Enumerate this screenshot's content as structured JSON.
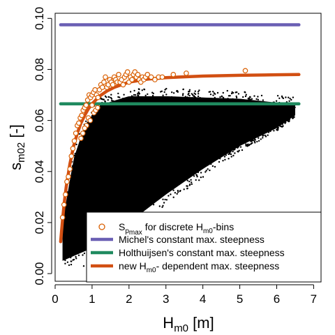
{
  "chart_data": {
    "type": "scatter",
    "title": "",
    "xlabel": {
      "main": "H",
      "sub": "m0",
      "suffix": " [m]"
    },
    "ylabel": {
      "main": "s",
      "sub": "m02",
      "suffix": " [-]"
    },
    "xlim": [
      0,
      7.2
    ],
    "ylim": [
      -0.003,
      0.102
    ],
    "x_ticks": [
      "0",
      "1",
      "2",
      "3",
      "4",
      "5",
      "6",
      "7"
    ],
    "y_ticks": [
      "0.00",
      "0.02",
      "0.04",
      "0.06",
      "0.08",
      "0.10"
    ],
    "grid": false,
    "legend_position": "bottom-right",
    "series": [
      {
        "name": "S_pmax for discrete H_m0-bins",
        "kind": "points",
        "color": "#d95f02",
        "values": [
          [
            0.2,
            0.022
          ],
          [
            0.24,
            0.027
          ],
          [
            0.28,
            0.031
          ],
          [
            0.32,
            0.036
          ],
          [
            0.36,
            0.038
          ],
          [
            0.4,
            0.041
          ],
          [
            0.44,
            0.046
          ],
          [
            0.48,
            0.049
          ],
          [
            0.52,
            0.052
          ],
          [
            0.56,
            0.055
          ],
          [
            0.6,
            0.058
          ],
          [
            0.64,
            0.059
          ],
          [
            0.68,
            0.061
          ],
          [
            0.72,
            0.062
          ],
          [
            0.76,
            0.064
          ],
          [
            0.8,
            0.065
          ],
          [
            0.84,
            0.066
          ],
          [
            0.88,
            0.068
          ],
          [
            0.92,
            0.07
          ],
          [
            0.96,
            0.069
          ],
          [
            1.0,
            0.07
          ],
          [
            1.04,
            0.071
          ],
          [
            1.08,
            0.072
          ],
          [
            1.12,
            0.07
          ],
          [
            1.16,
            0.069
          ],
          [
            1.2,
            0.072
          ],
          [
            1.24,
            0.074
          ],
          [
            1.28,
            0.073
          ],
          [
            1.32,
            0.075
          ],
          [
            1.36,
            0.077
          ],
          [
            1.4,
            0.073
          ],
          [
            1.44,
            0.074
          ],
          [
            1.48,
            0.076
          ],
          [
            1.52,
            0.075
          ],
          [
            1.56,
            0.074
          ],
          [
            1.6,
            0.077
          ],
          [
            1.64,
            0.076
          ],
          [
            1.68,
            0.075
          ],
          [
            1.72,
            0.078
          ],
          [
            1.76,
            0.075
          ],
          [
            1.8,
            0.076
          ],
          [
            1.84,
            0.074
          ],
          [
            1.88,
            0.077
          ],
          [
            1.92,
            0.078
          ],
          [
            1.96,
            0.079
          ],
          [
            2.0,
            0.075
          ],
          [
            2.04,
            0.077
          ],
          [
            2.08,
            0.076
          ],
          [
            2.12,
            0.078
          ],
          [
            2.16,
            0.079
          ],
          [
            2.2,
            0.077
          ],
          [
            2.24,
            0.078
          ],
          [
            2.28,
            0.076
          ],
          [
            2.32,
            0.075
          ],
          [
            2.36,
            0.077
          ],
          [
            2.4,
            0.076
          ],
          [
            2.45,
            0.077
          ],
          [
            2.5,
            0.078
          ],
          [
            2.6,
            0.077
          ],
          [
            2.7,
            0.076
          ],
          [
            2.8,
            0.077
          ],
          [
            2.9,
            0.077
          ],
          [
            3.2,
            0.078
          ],
          [
            3.55,
            0.0785
          ],
          [
            5.15,
            0.0795
          ],
          [
            0.9,
            0.061
          ],
          [
            0.95,
            0.06
          ],
          [
            1.05,
            0.063
          ],
          [
            1.1,
            0.064
          ],
          [
            1.15,
            0.065
          ],
          [
            0.85,
            0.058
          ],
          [
            0.8,
            0.057
          ],
          [
            0.75,
            0.055
          ],
          [
            0.7,
            0.053
          ],
          [
            1.0,
            0.066
          ]
        ]
      },
      {
        "name": "Michel's constant max. steepness",
        "kind": "line",
        "color": "#6a5fb4",
        "values": [
          [
            0.15,
            0.0975
          ],
          [
            6.6,
            0.0975
          ]
        ]
      },
      {
        "name": "Holthuijsen's constant max. steepness",
        "kind": "line",
        "color": "#1f8a5f",
        "values": [
          [
            0.15,
            0.0665
          ],
          [
            6.6,
            0.0665
          ]
        ]
      },
      {
        "name": "new H_m0- dependent max. steepness",
        "kind": "line",
        "color": "#d24f12",
        "values": [
          [
            0.15,
            0.0125
          ],
          [
            0.2,
            0.021
          ],
          [
            0.25,
            0.028
          ],
          [
            0.3,
            0.034
          ],
          [
            0.4,
            0.043
          ],
          [
            0.5,
            0.05
          ],
          [
            0.6,
            0.055
          ],
          [
            0.7,
            0.059
          ],
          [
            0.8,
            0.062
          ],
          [
            0.9,
            0.0645
          ],
          [
            1.0,
            0.0665
          ],
          [
            1.2,
            0.0695
          ],
          [
            1.4,
            0.0715
          ],
          [
            1.6,
            0.073
          ],
          [
            1.8,
            0.074
          ],
          [
            2.0,
            0.075
          ],
          [
            2.5,
            0.0762
          ],
          [
            3.0,
            0.0768
          ],
          [
            4.0,
            0.0774
          ],
          [
            5.0,
            0.0777
          ],
          [
            6.0,
            0.0779
          ],
          [
            6.6,
            0.078
          ]
        ]
      }
    ],
    "data_cloud": {
      "color": "#000000",
      "x_range": [
        0.2,
        6.5
      ],
      "lower_edge": [
        [
          0.2,
          0.005
        ],
        [
          1.0,
          0.01
        ],
        [
          2.0,
          0.02
        ],
        [
          3.0,
          0.031
        ],
        [
          4.0,
          0.041
        ],
        [
          5.0,
          0.05
        ],
        [
          6.0,
          0.057
        ],
        [
          6.5,
          0.062
        ]
      ],
      "upper_edge": [
        [
          0.2,
          0.02
        ],
        [
          0.5,
          0.045
        ],
        [
          0.8,
          0.058
        ],
        [
          1.2,
          0.066
        ],
        [
          2.0,
          0.0695
        ],
        [
          3.0,
          0.0695
        ],
        [
          4.0,
          0.069
        ],
        [
          5.0,
          0.0685
        ],
        [
          6.0,
          0.067
        ],
        [
          6.5,
          0.066
        ]
      ]
    }
  },
  "legend": {
    "items": [
      {
        "key": "spmax",
        "text": "S",
        "sub": "p",
        "subsub": "max",
        "rest": " for discrete H",
        "sub2": "m0",
        "rest2": "-bins",
        "color": "#d95f02"
      },
      {
        "key": "michel",
        "text": "Michel's constant max. steepness",
        "color": "#6a5fb4"
      },
      {
        "key": "holth",
        "text": "Holthuijsen's constant max. steepness",
        "color": "#1f8a5f"
      },
      {
        "key": "newhm0",
        "text": "new H",
        "sub": "m0",
        "rest": "- dependent max. steepness",
        "color": "#d24f12"
      }
    ]
  }
}
